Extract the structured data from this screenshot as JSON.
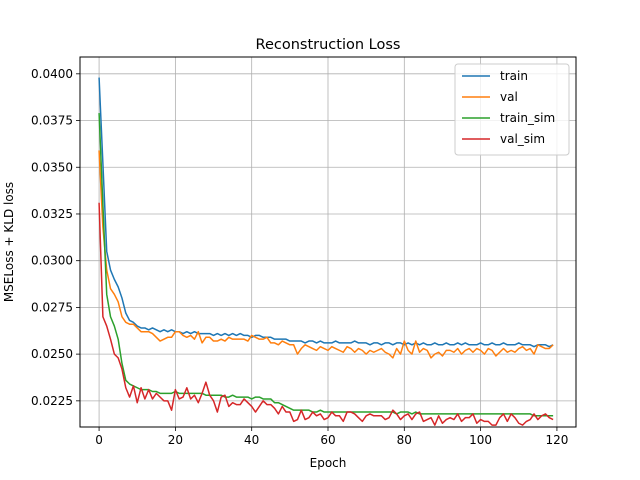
{
  "chart_data": {
    "type": "line",
    "title": "Reconstruction Loss",
    "xlabel": "Epoch",
    "ylabel": "MSELoss + KLD loss",
    "xlim": [
      -5,
      125
    ],
    "ylim": [
      0.0211,
      0.0409
    ],
    "xticks": [
      0,
      20,
      40,
      60,
      80,
      100,
      120
    ],
    "yticks": [
      0.0225,
      0.025,
      0.0275,
      0.03,
      0.0325,
      0.035,
      0.0375,
      0.04
    ],
    "ytick_labels": [
      "0.0225",
      "0.0250",
      "0.0275",
      "0.0300",
      "0.0325",
      "0.0350",
      "0.0375",
      "0.0400"
    ],
    "grid": true,
    "legend_position": "top-right",
    "series": [
      {
        "name": "train",
        "color": "#1f77b4",
        "values": [
          0.0398,
          0.0352,
          0.0305,
          0.0295,
          0.029,
          0.0286,
          0.028,
          0.0272,
          0.0268,
          0.0267,
          0.0265,
          0.0264,
          0.0264,
          0.0263,
          0.0264,
          0.0263,
          0.0262,
          0.0263,
          0.0262,
          0.0263,
          0.0262,
          0.0262,
          0.0261,
          0.0262,
          0.0261,
          0.0262,
          0.0261,
          0.0261,
          0.0261,
          0.0261,
          0.026,
          0.0261,
          0.026,
          0.0261,
          0.026,
          0.0261,
          0.026,
          0.0261,
          0.026,
          0.026,
          0.0259,
          0.026,
          0.026,
          0.0259,
          0.0259,
          0.0259,
          0.0258,
          0.0258,
          0.0258,
          0.0258,
          0.0257,
          0.0257,
          0.0257,
          0.0257,
          0.0256,
          0.0257,
          0.0257,
          0.0256,
          0.0257,
          0.0256,
          0.0256,
          0.0256,
          0.0257,
          0.0256,
          0.0256,
          0.0256,
          0.0256,
          0.0257,
          0.0256,
          0.0256,
          0.0256,
          0.0255,
          0.0256,
          0.0256,
          0.0255,
          0.0256,
          0.0256,
          0.0255,
          0.0256,
          0.0256,
          0.0255,
          0.0256,
          0.0255,
          0.0256,
          0.0255,
          0.0256,
          0.0255,
          0.0255,
          0.0256,
          0.0255,
          0.0255,
          0.0256,
          0.0255,
          0.0255,
          0.0256,
          0.0255,
          0.0256,
          0.0255,
          0.0255,
          0.0255,
          0.0256,
          0.0255,
          0.0255,
          0.0256,
          0.0255,
          0.0255,
          0.0256,
          0.0255,
          0.0255,
          0.0255,
          0.0256,
          0.0255,
          0.0255,
          0.0255,
          0.0254,
          0.0255,
          0.0255,
          0.0255,
          0.0254,
          0.0255
        ]
      },
      {
        "name": "val",
        "color": "#ff7f0e",
        "values": [
          0.0359,
          0.0318,
          0.0295,
          0.0285,
          0.0282,
          0.0278,
          0.027,
          0.0267,
          0.0266,
          0.0266,
          0.0264,
          0.0262,
          0.0262,
          0.0262,
          0.0261,
          0.0259,
          0.0257,
          0.0258,
          0.0259,
          0.0259,
          0.0262,
          0.0262,
          0.026,
          0.0259,
          0.026,
          0.0258,
          0.0262,
          0.0256,
          0.0259,
          0.0259,
          0.0257,
          0.0257,
          0.0258,
          0.0257,
          0.0259,
          0.0258,
          0.0258,
          0.0258,
          0.0258,
          0.0257,
          0.026,
          0.0259,
          0.0258,
          0.0258,
          0.0259,
          0.0256,
          0.0256,
          0.0255,
          0.0257,
          0.0256,
          0.0255,
          0.0255,
          0.025,
          0.0253,
          0.0255,
          0.0254,
          0.0253,
          0.0252,
          0.0254,
          0.0253,
          0.0252,
          0.0254,
          0.0253,
          0.0252,
          0.0251,
          0.0254,
          0.0253,
          0.0251,
          0.0253,
          0.0252,
          0.025,
          0.0252,
          0.0251,
          0.0252,
          0.0253,
          0.0251,
          0.025,
          0.0248,
          0.0253,
          0.025,
          0.0257,
          0.0252,
          0.025,
          0.0257,
          0.0251,
          0.0253,
          0.0252,
          0.0248,
          0.025,
          0.0251,
          0.0249,
          0.0252,
          0.0252,
          0.0251,
          0.0253,
          0.025,
          0.0252,
          0.0253,
          0.0251,
          0.0253,
          0.0252,
          0.025,
          0.0253,
          0.0252,
          0.0249,
          0.0251,
          0.0253,
          0.0251,
          0.0252,
          0.0251,
          0.0253,
          0.0254,
          0.0252,
          0.0253,
          0.025,
          0.0255,
          0.0254,
          0.0253,
          0.0253,
          0.0255
        ]
      },
      {
        "name": "train_sim",
        "color": "#2ca02c",
        "values": [
          0.0379,
          0.033,
          0.0282,
          0.027,
          0.0265,
          0.0258,
          0.0245,
          0.0236,
          0.0234,
          0.0233,
          0.0232,
          0.0231,
          0.0231,
          0.0231,
          0.023,
          0.023,
          0.0229,
          0.0229,
          0.0229,
          0.0229,
          0.023,
          0.0229,
          0.0229,
          0.0229,
          0.0229,
          0.0229,
          0.0229,
          0.0229,
          0.0228,
          0.0228,
          0.0228,
          0.0228,
          0.0228,
          0.0227,
          0.0227,
          0.0228,
          0.0227,
          0.0227,
          0.0227,
          0.0227,
          0.0226,
          0.0227,
          0.0227,
          0.0226,
          0.0226,
          0.0226,
          0.0224,
          0.0224,
          0.0223,
          0.0222,
          0.0221,
          0.022,
          0.022,
          0.022,
          0.022,
          0.022,
          0.0219,
          0.0219,
          0.022,
          0.0219,
          0.0219,
          0.0219,
          0.0219,
          0.0219,
          0.0219,
          0.0219,
          0.0219,
          0.0219,
          0.0219,
          0.0219,
          0.0219,
          0.0219,
          0.0219,
          0.0219,
          0.0219,
          0.0219,
          0.0219,
          0.0219,
          0.0218,
          0.0219,
          0.0219,
          0.0219,
          0.0218,
          0.0219,
          0.0218,
          0.0218,
          0.0218,
          0.0218,
          0.0218,
          0.0218,
          0.0218,
          0.0218,
          0.0218,
          0.0218,
          0.0218,
          0.0218,
          0.0218,
          0.0218,
          0.0218,
          0.0218,
          0.0218,
          0.0218,
          0.0218,
          0.0218,
          0.0218,
          0.0218,
          0.0218,
          0.0218,
          0.0218,
          0.0218,
          0.0218,
          0.0218,
          0.0218,
          0.0218,
          0.0217,
          0.0217,
          0.0217,
          0.0217,
          0.0217,
          0.0217
        ]
      },
      {
        "name": "val_sim",
        "color": "#d62728",
        "values": [
          0.0331,
          0.027,
          0.0265,
          0.0258,
          0.025,
          0.0248,
          0.0242,
          0.0232,
          0.0227,
          0.0233,
          0.0224,
          0.0232,
          0.0226,
          0.0231,
          0.0226,
          0.0229,
          0.0227,
          0.0225,
          0.0225,
          0.022,
          0.0231,
          0.0226,
          0.0227,
          0.0232,
          0.0226,
          0.0228,
          0.0224,
          0.0229,
          0.0235,
          0.0228,
          0.0225,
          0.0219,
          0.0227,
          0.0228,
          0.0222,
          0.0224,
          0.0223,
          0.0223,
          0.0226,
          0.0224,
          0.0222,
          0.0219,
          0.0222,
          0.0225,
          0.0223,
          0.0223,
          0.0221,
          0.0218,
          0.0222,
          0.0219,
          0.0219,
          0.0214,
          0.0215,
          0.022,
          0.0215,
          0.0216,
          0.0219,
          0.0217,
          0.0218,
          0.0215,
          0.0216,
          0.0219,
          0.0217,
          0.0217,
          0.0214,
          0.0219,
          0.0219,
          0.0218,
          0.0216,
          0.0214,
          0.0217,
          0.0218,
          0.0217,
          0.0217,
          0.0217,
          0.0215,
          0.0216,
          0.022,
          0.0218,
          0.0215,
          0.0217,
          0.0218,
          0.0215,
          0.0218,
          0.0219,
          0.0214,
          0.0215,
          0.0216,
          0.0212,
          0.0217,
          0.0213,
          0.0215,
          0.0216,
          0.0215,
          0.0218,
          0.0214,
          0.0216,
          0.0216,
          0.0218,
          0.0213,
          0.0215,
          0.0214,
          0.0214,
          0.0212,
          0.0212,
          0.0216,
          0.0218,
          0.0214,
          0.0218,
          0.0216,
          0.0213,
          0.0212,
          0.0214,
          0.0215,
          0.0218,
          0.0215,
          0.0217,
          0.0218,
          0.0216,
          0.0215
        ]
      }
    ]
  }
}
